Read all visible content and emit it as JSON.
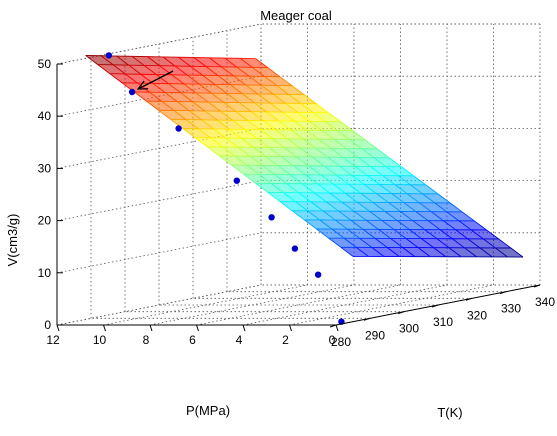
{
  "chart_data": {
    "type": "surface3d",
    "title": "Meager coal",
    "xlabel": "P(MPa)",
    "ylabel": "T(K)",
    "zlabel": "V(cm3/g)",
    "xlim": [
      0,
      12
    ],
    "ylim": [
      280,
      340
    ],
    "zlim": [
      0,
      50
    ],
    "xticks": [
      0,
      2,
      4,
      6,
      8,
      10,
      12
    ],
    "yticks": [
      280,
      290,
      300,
      310,
      320,
      330,
      340
    ],
    "zticks": [
      0,
      10,
      20,
      30,
      40,
      50
    ],
    "grid": true,
    "colormap": "jet",
    "surface": {
      "x_range": [
        0,
        11.5
      ],
      "y_range": [
        285,
        335
      ],
      "corner_values": {
        "x_min_y_min": 12.5,
        "x_max_y_min": 51,
        "x_min_y_max": 6,
        "x_max_y_max": 44
      }
    },
    "points": [
      {
        "x": 0.5,
        "y": 285,
        "z": 0
      },
      {
        "x": 1.5,
        "y": 285,
        "z": 9
      },
      {
        "x": 2.5,
        "y": 285,
        "z": 14
      },
      {
        "x": 3.5,
        "y": 285,
        "z": 20
      },
      {
        "x": 5.0,
        "y": 285,
        "z": 27
      },
      {
        "x": 7.5,
        "y": 285,
        "z": 37
      },
      {
        "x": 9.5,
        "y": 285,
        "z": 44
      },
      {
        "x": 10.5,
        "y": 285,
        "z": 51
      }
    ],
    "annotation": {
      "type": "arrow",
      "x": 9.5,
      "y": 285,
      "z": 44
    }
  }
}
